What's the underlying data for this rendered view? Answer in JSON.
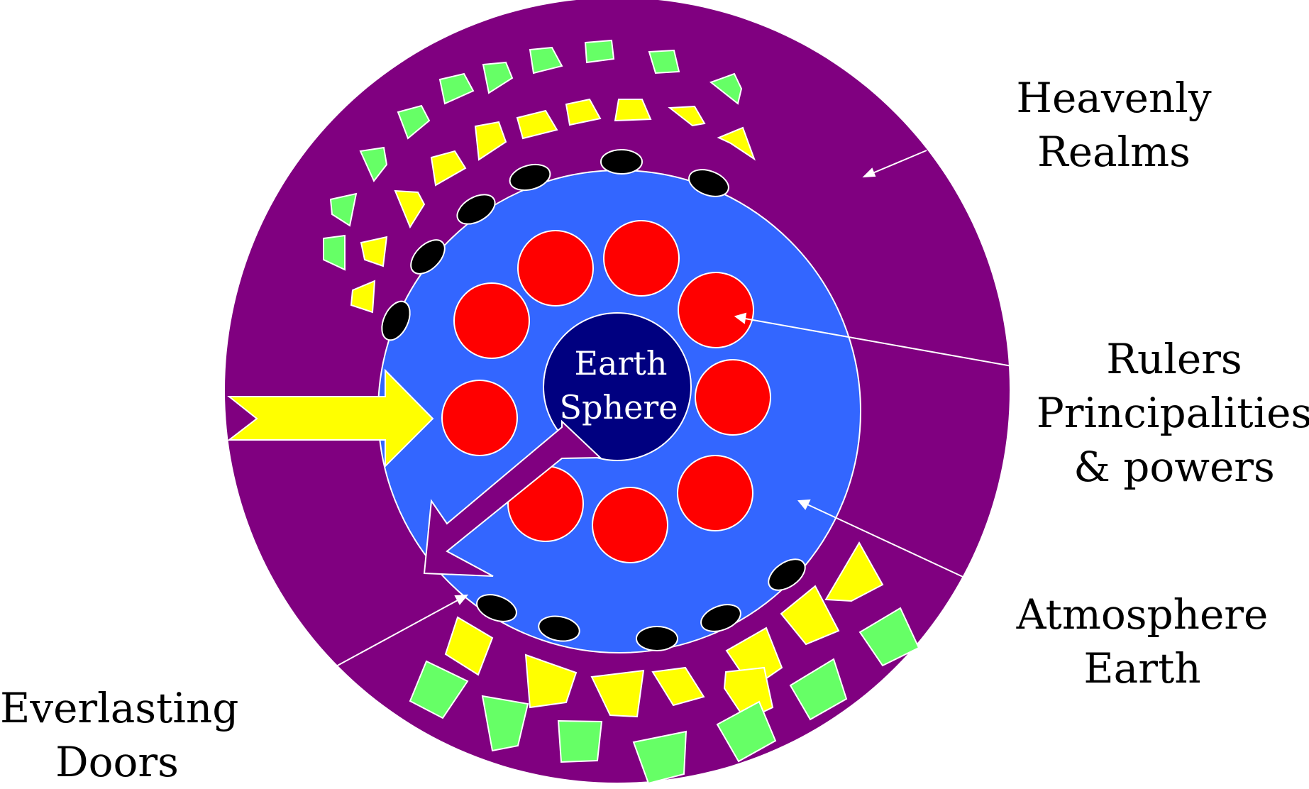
{
  "diagram": {
    "center_label": {
      "line1": "Earth",
      "line2": "Sphere"
    },
    "labels": {
      "heavenly": {
        "line1": "Heavenly",
        "line2": "Realms"
      },
      "rulers": {
        "line1": "Rulers",
        "line2": "Principalities",
        "line3": "& powers"
      },
      "atmosphere": {
        "line1": "Atmosphere",
        "line2": "Earth"
      },
      "everlasting": {
        "line1": "Everlasting",
        "line2": "Doors"
      }
    },
    "colors": {
      "heavenly_realm": "#800080",
      "atmosphere": "#3366ff",
      "earth_sphere": "#000080",
      "rulers": "#ff0000",
      "doors": "#000000",
      "angels_yellow": "#ffff00",
      "angels_green": "#66ff66",
      "arrow_yellow": "#ffff00",
      "arrow_purple": "#800080"
    }
  }
}
